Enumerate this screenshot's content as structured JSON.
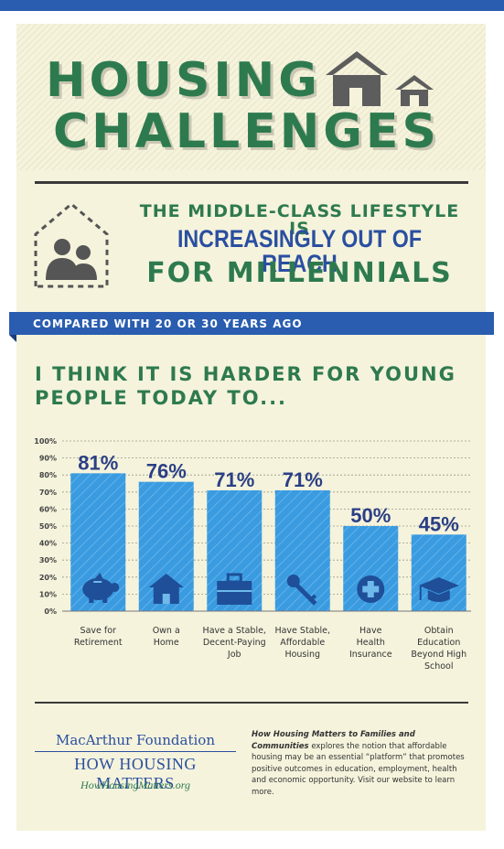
{
  "title": {
    "line1": "HOUSING",
    "line2": "CHALLENGES"
  },
  "subtitle": {
    "line1": "THE MIDDLE-CLASS LIFESTYLE IS",
    "line2": "INCREASINGLY OUT OF REACH",
    "line3": "FOR MILLENNIALS"
  },
  "banner": "COMPARED WITH 20 OR 30 YEARS AGO",
  "question": "I THINK IT IS HARDER FOR YOUNG PEOPLE TODAY TO...",
  "colors": {
    "bar": "#3a9be0",
    "title_green": "#2e7a4f",
    "blue": "#2a4fa0",
    "banner": "#2a5db0"
  },
  "chart_data": {
    "type": "bar",
    "title": "",
    "xlabel": "",
    "ylabel": "",
    "ylim": [
      0,
      100
    ],
    "y_ticks": [
      "0%",
      "10%",
      "20%",
      "30%",
      "40%",
      "50%",
      "60%",
      "70%",
      "80%",
      "90%",
      "100%"
    ],
    "grid": true,
    "categories": [
      [
        "Save for",
        "Retirement"
      ],
      [
        "Own a",
        "Home"
      ],
      [
        "Have a Stable,",
        "Decent-Paying",
        "Job"
      ],
      [
        "Have Stable,",
        "Affordable",
        "Housing"
      ],
      [
        "Have",
        "Health",
        "Insurance"
      ],
      [
        "Obtain",
        "Education",
        "Beyond High",
        "School"
      ]
    ],
    "values": [
      81,
      76,
      71,
      71,
      50,
      45
    ],
    "value_labels": [
      "81%",
      "76%",
      "71%",
      "71%",
      "50%",
      "45%"
    ],
    "icons": [
      "piggy-bank-icon",
      "house-icon",
      "briefcase-icon",
      "key-icon",
      "health-cross-icon",
      "graduation-cap-icon"
    ]
  },
  "footer": {
    "org": "MacArthur Foundation",
    "brand": "HOW HOUSING MATTERS",
    "url": "HowHousingMatters.org",
    "desc_title": "How Housing Matters to Families and Communities",
    "desc_body": "explores the notion that affordable housing may be an essential “platform” that promotes positive outcomes in education, employment, health and economic opportunity. Visit our website to learn more."
  }
}
